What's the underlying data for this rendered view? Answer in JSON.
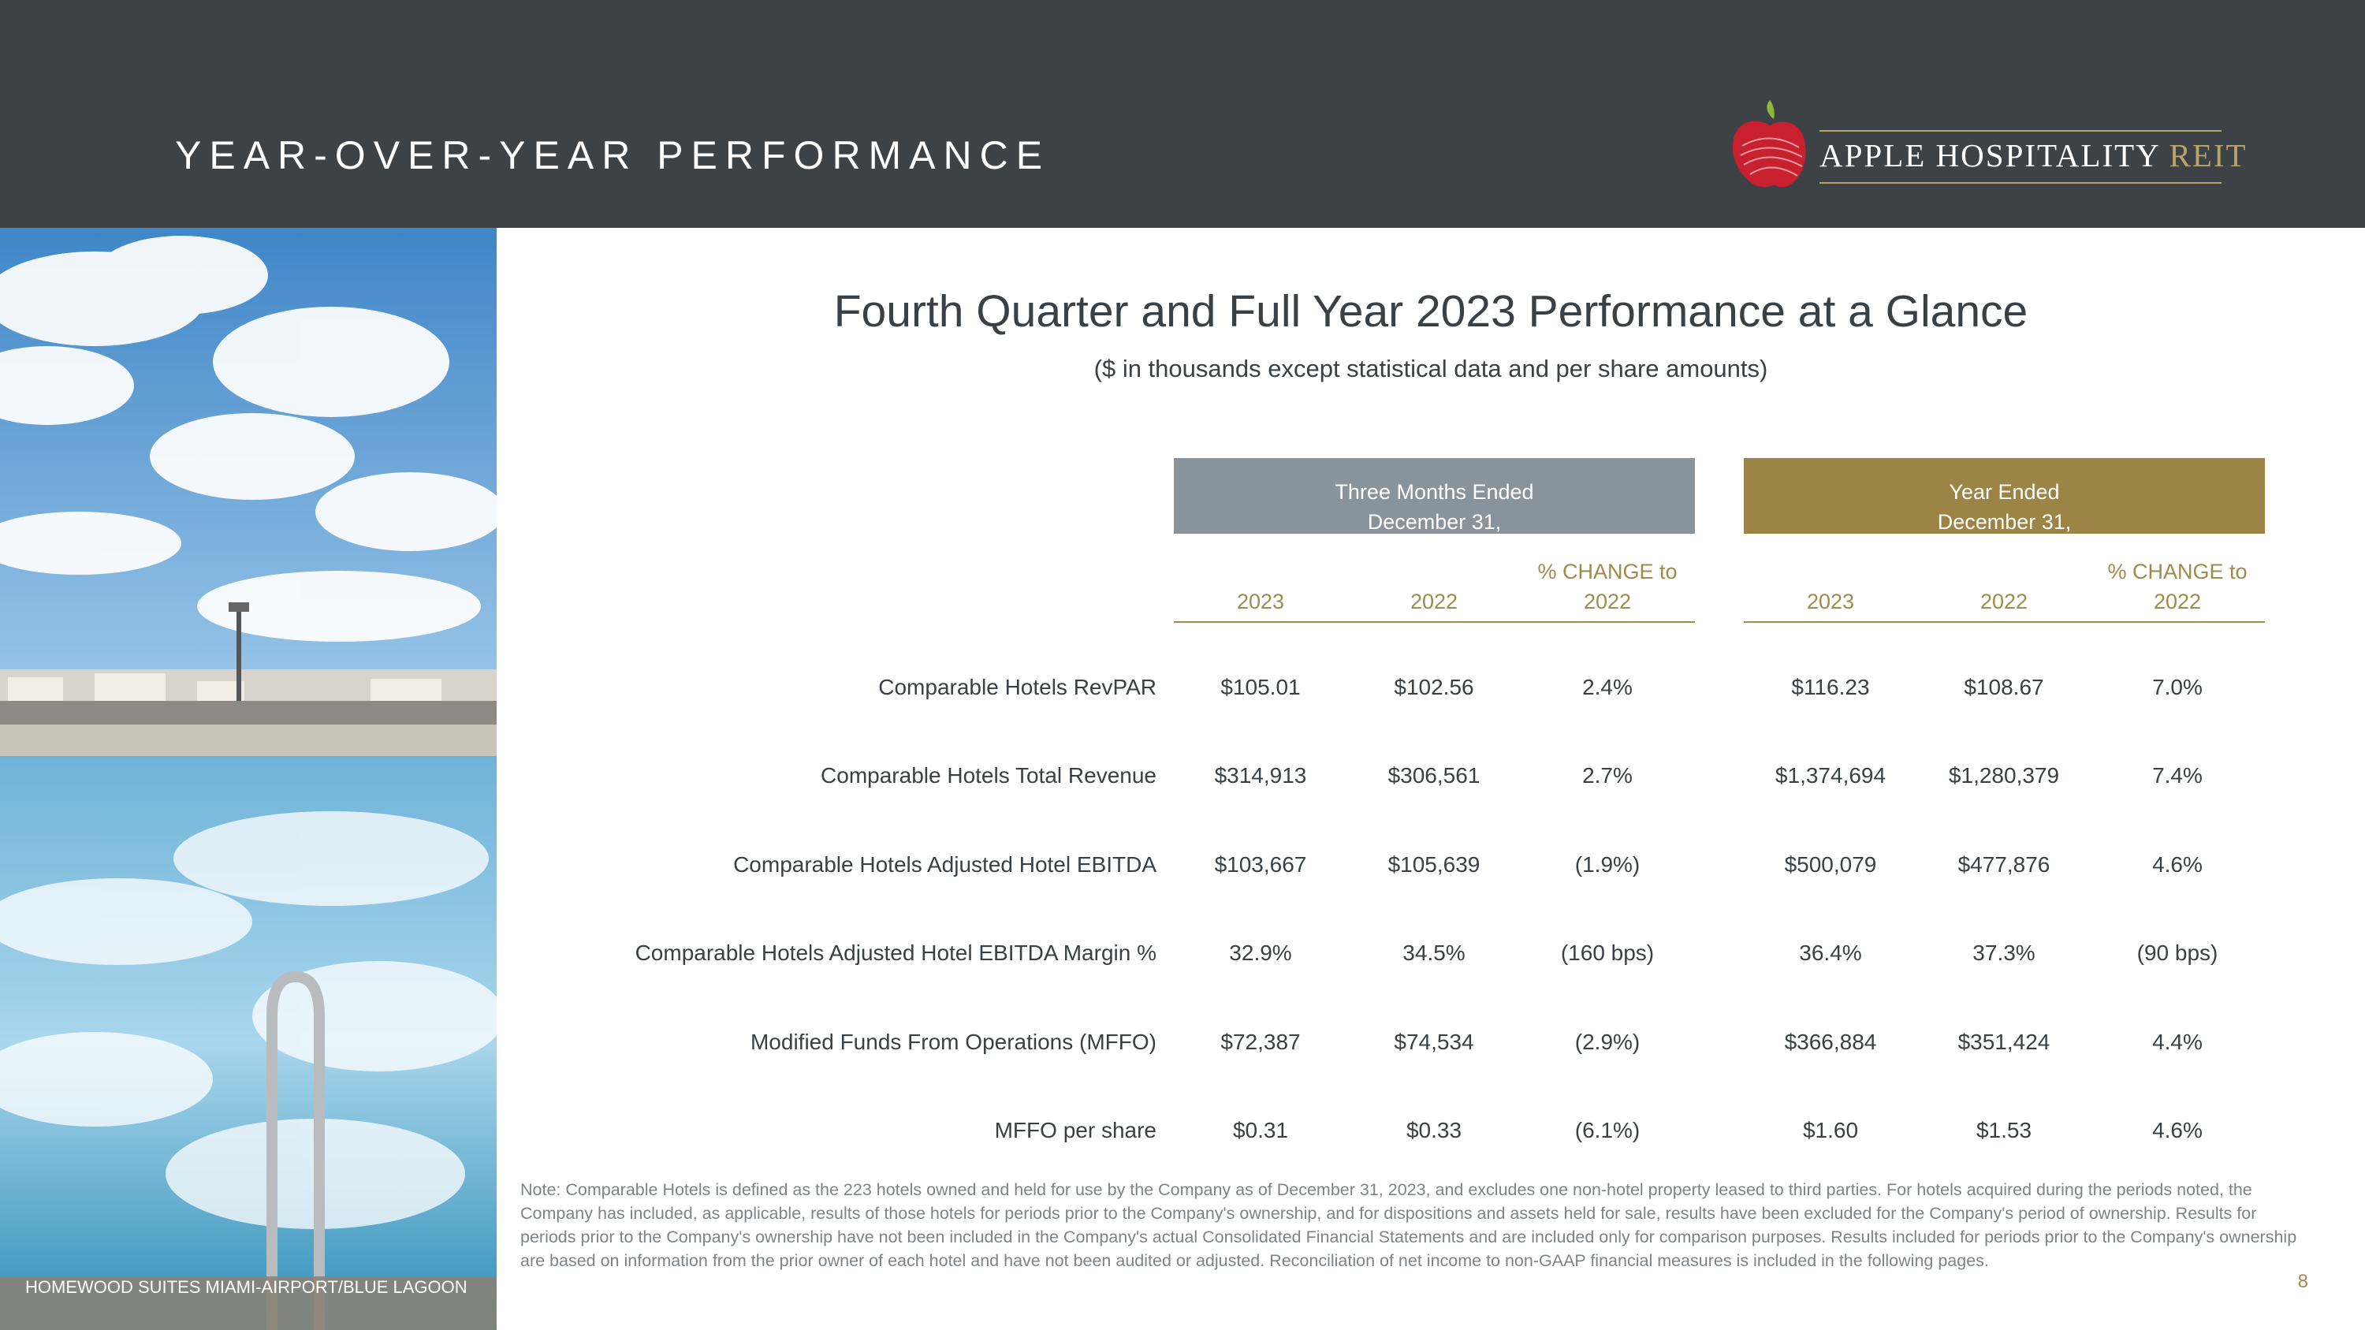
{
  "header": {
    "title": "YEAR-OVER-YEAR PERFORMANCE",
    "logo": {
      "name": "APPLE HOSPITALITY",
      "suffix": "REIT"
    },
    "colors": {
      "bar": "#3c4245",
      "gold": "#b8a36a",
      "apple_red": "#c8202f",
      "leaf": "#8cb93a"
    }
  },
  "photo": {
    "caption": "HOMEWOOD SUITES MIAMI-AIRPORT/BLUE LAGOON"
  },
  "title": "Fourth Quarter and Full Year 2023 Performance at a Glance",
  "subtitle": "($ in thousands except statistical data and per share amounts)",
  "groups": {
    "three_months": {
      "line1": "Three Months Ended",
      "line2": "December 31,",
      "color": "#88939c"
    },
    "year": {
      "line1": "Year Ended",
      "line2": "December 31,",
      "color": "#9b8446"
    }
  },
  "columns": {
    "y2023": "2023",
    "y2022": "2022",
    "change_line1": "% CHANGE to",
    "change_line2": "2022"
  },
  "rows": [
    {
      "label": "Comparable Hotels RevPAR",
      "q23": "$105.01",
      "q22": "$102.56",
      "qchg": "2.4%",
      "y23": "$116.23",
      "y22": "$108.67",
      "ychg": "7.0%"
    },
    {
      "label": "Comparable Hotels Total Revenue",
      "q23": "$314,913",
      "q22": "$306,561",
      "qchg": "2.7%",
      "y23": "$1,374,694",
      "y22": "$1,280,379",
      "ychg": "7.4%"
    },
    {
      "label": "Comparable Hotels Adjusted Hotel EBITDA",
      "q23": "$103,667",
      "q22": "$105,639",
      "qchg": "(1.9%)",
      "y23": "$500,079",
      "y22": "$477,876",
      "ychg": "4.6%"
    },
    {
      "label": "Comparable Hotels Adjusted Hotel EBITDA Margin %",
      "q23": "32.9%",
      "q22": "34.5%",
      "qchg": "(160 bps)",
      "y23": "36.4%",
      "y22": "37.3%",
      "ychg": "(90 bps)"
    },
    {
      "label": "Modified Funds From Operations (MFFO)",
      "q23": "$72,387",
      "q22": "$74,534",
      "qchg": "(2.9%)",
      "y23": "$366,884",
      "y22": "$351,424",
      "ychg": "4.4%"
    },
    {
      "label": "MFFO per share",
      "q23": "$0.31",
      "q22": "$0.33",
      "qchg": "(6.1%)",
      "y23": "$1.60",
      "y22": "$1.53",
      "ychg": "4.6%"
    }
  ],
  "note": "Note:  Comparable Hotels is defined as the 223 hotels owned and held for use by the Company as of December 31, 2023, and excludes one non-hotel property leased to third parties. For hotels acquired during the periods noted, the Company has included, as applicable, results of those hotels for periods prior to the Company's ownership, and for dispositions and assets held for sale, results have been excluded for the Company's period of ownership. Results for periods prior to the Company's ownership have not been included in the Company's actual Consolidated Financial Statements and are included only for comparison purposes. Results included for periods prior to the Company's ownership are based on information from the prior owner of each hotel and have not been audited or adjusted. Reconciliation of net income to non-GAAP financial measures is included in the following pages.",
  "page_number": "8"
}
